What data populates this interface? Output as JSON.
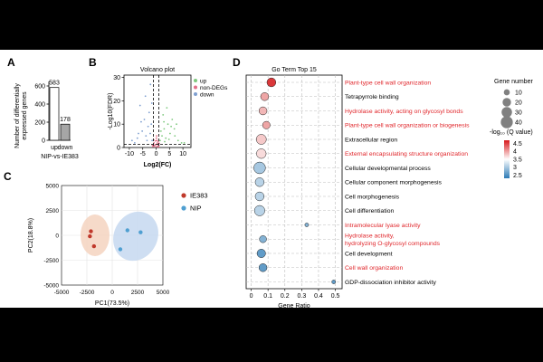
{
  "panels": {
    "A": {
      "label": "A",
      "chart_type": "bar",
      "ylabel_lines": [
        "Number of differentially",
        "expressed genes"
      ],
      "xlabel": "NIP-vs-IE383",
      "categories": [
        "up",
        "down"
      ],
      "values": [
        583,
        178
      ],
      "value_labels": [
        "583",
        "178"
      ],
      "yticks": [
        "0",
        "200",
        "400",
        "600"
      ],
      "ylim": [
        0,
        650
      ],
      "colors": [
        "#ffffff",
        "#a6a6a6"
      ]
    },
    "B": {
      "label": "B",
      "chart_type": "scatter",
      "title": "Volcano plot",
      "xlabel": "Log2(FC)",
      "ylabel": "-Log10(FDR)",
      "xticks": [
        "-10",
        "-5",
        "0",
        "5",
        "10"
      ],
      "yticks": [
        "0",
        "10",
        "20",
        "30"
      ],
      "xlim": [
        -12,
        13
      ],
      "ylim": [
        0,
        31
      ],
      "legend": [
        {
          "name": "up",
          "color": "#7fc97f"
        },
        {
          "name": "non-DEGs",
          "color": "#e36f8a"
        },
        {
          "name": "down",
          "color": "#7e9fd0"
        }
      ]
    },
    "C": {
      "label": "C",
      "chart_type": "scatter",
      "xlabel": "PC1(73.5%)",
      "ylabel": "PC2(18.8%)",
      "xticks": [
        "-5000",
        "-2500",
        "0",
        "2500",
        "5000"
      ],
      "yticks": [
        "-5000",
        "-2500",
        "0",
        "2500",
        "5000"
      ],
      "legend": [
        {
          "name": "IE383",
          "color": "#c0392b"
        },
        {
          "name": "NIP",
          "color": "#4f9fd1"
        }
      ]
    },
    "D": {
      "label": "D",
      "chart_type": "scatter",
      "title": "Go Term Top 15",
      "xlabel": "Gene Ratio",
      "xticks": [
        "0",
        "0.1",
        "0.2",
        "0.3",
        "0.4",
        "0.5"
      ],
      "size_legend_title": "Gene number",
      "size_legend": [
        "10",
        "20",
        "30",
        "40"
      ],
      "color_legend_title": "-log₁₀ (Q value)",
      "color_ticks": [
        "4.5",
        "4",
        "3.5",
        "3",
        "2.5"
      ]
    }
  },
  "chart_data": [
    {
      "type": "bar",
      "categories": [
        "up",
        "down"
      ],
      "values": [
        583,
        178
      ],
      "ylabel": "Number of differentially expressed genes",
      "xlabel": "NIP-vs-IE383",
      "ylim": [
        0,
        650
      ]
    },
    {
      "type": "scatter",
      "title": "Volcano plot",
      "xlabel": "Log2(FC)",
      "ylabel": "-Log10(FDR)",
      "xlim": [
        -12,
        13
      ],
      "ylim": [
        0,
        31
      ],
      "series": [
        {
          "name": "up",
          "points": [
            [
              1.5,
              3
            ],
            [
              2.2,
              5
            ],
            [
              3,
              8
            ],
            [
              3.6,
              4
            ],
            [
              4.4,
              10
            ],
            [
              5.2,
              6
            ],
            [
              6,
              12
            ],
            [
              7,
              5
            ],
            [
              8.2,
              3
            ],
            [
              9.5,
              2
            ],
            [
              2.6,
              14
            ],
            [
              4,
              17
            ],
            [
              5.6,
              9
            ],
            [
              3.2,
              2.5
            ],
            [
              6.8,
              8
            ],
            [
              1.8,
              7
            ],
            [
              2.9,
              11
            ],
            [
              4.8,
              3.5
            ],
            [
              7.6,
              10
            ],
            [
              10.5,
              2
            ]
          ]
        },
        {
          "name": "non-DEGs",
          "points": [
            [
              -1,
              0.5
            ],
            [
              -0.5,
              1
            ],
            [
              0,
              0.3
            ],
            [
              0.5,
              1.5
            ],
            [
              1,
              0.8
            ],
            [
              -0.8,
              2
            ],
            [
              0.3,
              3
            ],
            [
              -0.3,
              1.2
            ],
            [
              0.8,
              2.5
            ],
            [
              -1.2,
              0.4
            ],
            [
              0.1,
              4
            ],
            [
              -0.6,
              0.8
            ],
            [
              0.6,
              0.6
            ],
            [
              1.1,
              1.8
            ],
            [
              -1.4,
              1.1
            ],
            [
              0.2,
              5
            ],
            [
              -0.2,
              2.8
            ],
            [
              0.9,
              0.3
            ],
            [
              -0.9,
              3.2
            ],
            [
              0.4,
              1.9
            ]
          ]
        },
        {
          "name": "down",
          "points": [
            [
              -1.5,
              3
            ],
            [
              -2.2,
              6
            ],
            [
              -3,
              9
            ],
            [
              -3.8,
              5
            ],
            [
              -4.4,
              12
            ],
            [
              -5.2,
              7
            ],
            [
              -6,
              18
            ],
            [
              -7,
              4
            ],
            [
              -8,
              2
            ],
            [
              -9,
              3
            ],
            [
              -2.6,
              15
            ],
            [
              -4,
              22
            ],
            [
              -1.8,
              10
            ],
            [
              -3.4,
              3
            ],
            [
              -5.6,
              11
            ],
            [
              -2.1,
              27
            ],
            [
              -6.6,
              6
            ],
            [
              -1.6,
              19
            ]
          ]
        }
      ]
    },
    {
      "type": "scatter",
      "xlabel": "PC1(73.5%)",
      "ylabel": "PC2(18.8%)",
      "xlim": [
        -5000,
        5000
      ],
      "ylim": [
        -5000,
        5000
      ],
      "series": [
        {
          "name": "IE383",
          "points": [
            [
              -2100,
              400
            ],
            [
              -2200,
              -100
            ],
            [
              -1800,
              -1100
            ]
          ]
        },
        {
          "name": "NIP",
          "points": [
            [
              1500,
              500
            ],
            [
              2800,
              300
            ],
            [
              800,
              -1400
            ]
          ]
        }
      ]
    },
    {
      "type": "scatter",
      "title": "Go Term Top 15",
      "xlabel": "Gene Ratio",
      "xlim": [
        -0.03,
        0.54
      ],
      "categories": [
        "Plant-type cell wall organization",
        "Tetrapyrrole binding",
        "Hydrolase activity, acting on glycosyl bonds",
        "Plant-type cell wall organization or biogenesis",
        "Extracellular region",
        "External encapsulating structure organization",
        "Cellular developmental process",
        "Cellular component morphogenesis",
        "Cell morphogenesis",
        "Cell differentiation",
        "Intramolecular lyase activity",
        "Hydrolase activity, hydrolyzing O-glycosyl  compounds",
        "Cell development",
        "Cell wall organization",
        "GDP-dissociation inhibitor activity"
      ],
      "label_colors": [
        "#e0262b",
        "#000000",
        "#e0262b",
        "#e0262b",
        "#000000",
        "#e0262b",
        "#000000",
        "#000000",
        "#000000",
        "#000000",
        "#e0262b",
        "#e0262b",
        "#000000",
        "#e0262b",
        "#000000"
      ],
      "gene_ratio": [
        0.12,
        0.08,
        0.07,
        0.09,
        0.06,
        0.06,
        0.05,
        0.05,
        0.05,
        0.05,
        0.33,
        0.07,
        0.06,
        0.07,
        0.49
      ],
      "gene_number": [
        22,
        18,
        18,
        16,
        28,
        26,
        38,
        22,
        22,
        30,
        4,
        14,
        20,
        18,
        4
      ],
      "q_value_neg_log10": [
        4.6,
        4.0,
        3.9,
        4.0,
        3.8,
        3.7,
        3.0,
        3.1,
        3.1,
        3.1,
        2.8,
        2.8,
        2.6,
        2.6,
        2.6
      ],
      "size_legend": [
        10,
        20,
        30,
        40
      ],
      "color_range": [
        2.3,
        4.7
      ]
    }
  ]
}
